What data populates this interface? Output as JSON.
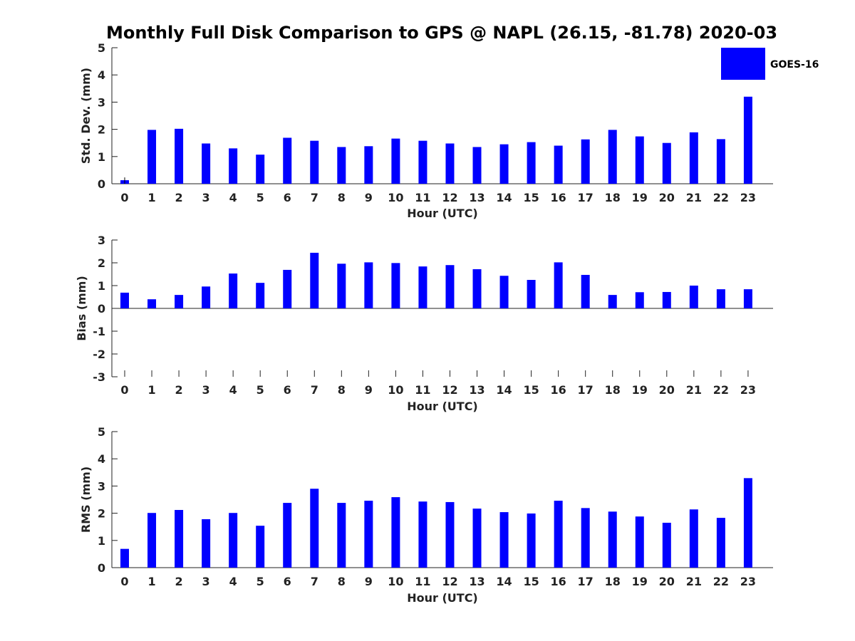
{
  "title": "Monthly Full Disk Comparison to GPS @ NAPL (26.15, -81.78) 2020-03",
  "colors": {
    "bar": "#0000ff",
    "axis": "#222222"
  },
  "chart_data": [
    {
      "type": "bar",
      "title": "Monthly Full Disk Comparison to GPS @ NAPL (26.15, -81.78) 2020-03",
      "xlabel": "Hour (UTC)",
      "ylabel": "Std. Dev. (mm)",
      "ylim": [
        0,
        5
      ],
      "yticks": [
        0,
        1,
        2,
        3,
        4,
        5
      ],
      "categories": [
        "0",
        "1",
        "2",
        "3",
        "4",
        "5",
        "6",
        "7",
        "8",
        "9",
        "10",
        "11",
        "12",
        "13",
        "14",
        "15",
        "16",
        "17",
        "18",
        "19",
        "20",
        "21",
        "22",
        "23"
      ],
      "series": [
        {
          "name": "GOES-16",
          "values": [
            0.13,
            1.98,
            2.02,
            1.48,
            1.3,
            1.07,
            1.69,
            1.58,
            1.35,
            1.38,
            1.66,
            1.58,
            1.48,
            1.35,
            1.45,
            1.53,
            1.4,
            1.63,
            1.98,
            1.74,
            1.5,
            1.89,
            1.64,
            3.2
          ]
        }
      ],
      "error_bar": {
        "category": "0",
        "low": 0.0,
        "high": 0.22
      },
      "legend": {
        "position": "top-right"
      },
      "grid": false
    },
    {
      "type": "bar",
      "xlabel": "Hour (UTC)",
      "ylabel": "Bias (mm)",
      "ylim": [
        -3,
        3
      ],
      "yticks": [
        -3,
        -2,
        -1,
        0,
        1,
        2,
        3
      ],
      "categories": [
        "0",
        "1",
        "2",
        "3",
        "4",
        "5",
        "6",
        "7",
        "8",
        "9",
        "10",
        "11",
        "12",
        "13",
        "14",
        "15",
        "16",
        "17",
        "18",
        "19",
        "20",
        "21",
        "22",
        "23"
      ],
      "series": [
        {
          "name": "GOES-16",
          "values": [
            0.69,
            0.4,
            0.59,
            0.96,
            1.53,
            1.12,
            1.69,
            2.44,
            1.96,
            2.02,
            1.99,
            1.84,
            1.9,
            1.72,
            1.43,
            1.25,
            2.02,
            1.47,
            0.59,
            0.71,
            0.72,
            1.0,
            0.84,
            0.84
          ]
        }
      ],
      "grid": false
    },
    {
      "type": "bar",
      "xlabel": "Hour (UTC)",
      "ylabel": "RMS (mm)",
      "ylim": [
        0,
        5
      ],
      "yticks": [
        0,
        1,
        2,
        3,
        4,
        5
      ],
      "categories": [
        "0",
        "1",
        "2",
        "3",
        "4",
        "5",
        "6",
        "7",
        "8",
        "9",
        "10",
        "11",
        "12",
        "13",
        "14",
        "15",
        "16",
        "17",
        "18",
        "19",
        "20",
        "21",
        "22",
        "23"
      ],
      "series": [
        {
          "name": "GOES-16",
          "values": [
            0.69,
            2.01,
            2.12,
            1.78,
            2.01,
            1.54,
            2.38,
            2.9,
            2.38,
            2.46,
            2.59,
            2.43,
            2.41,
            2.17,
            2.04,
            1.99,
            2.46,
            2.19,
            2.06,
            1.88,
            1.65,
            2.14,
            1.83,
            3.29
          ]
        }
      ],
      "grid": false
    }
  ],
  "legend": {
    "label": "GOES-16"
  }
}
